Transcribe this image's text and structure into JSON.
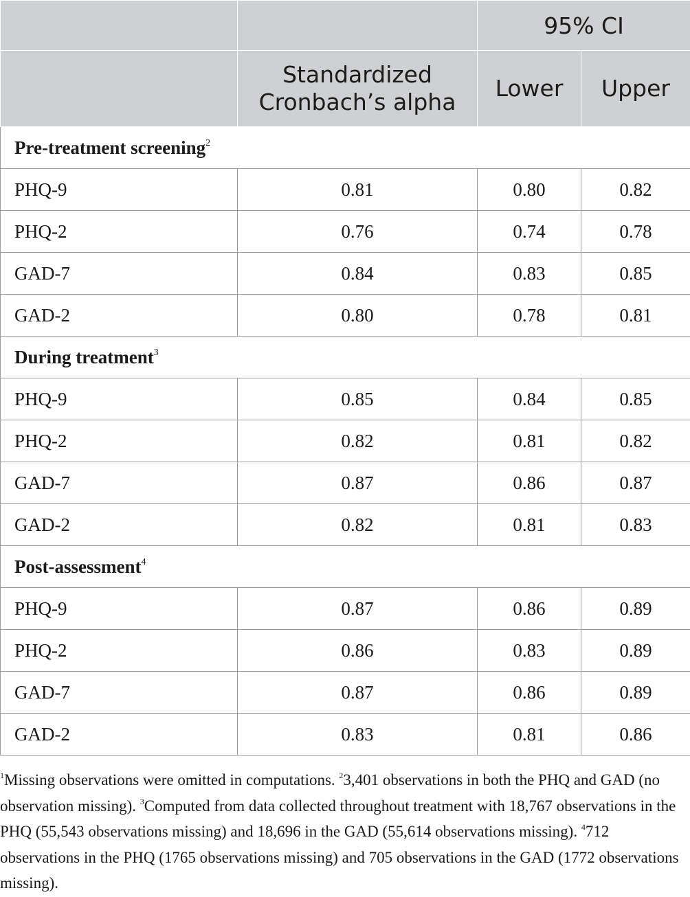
{
  "header": {
    "ci_label": "95% CI",
    "alpha_line1": "Standardized",
    "alpha_line2": "Cronbach’s alpha",
    "lower": "Lower",
    "upper": "Upper"
  },
  "sections": [
    {
      "title": "Pre-treatment screening",
      "sup": "2",
      "rows": [
        {
          "label": "PHQ-9",
          "alpha": "0.81",
          "lower": "0.80",
          "upper": "0.82"
        },
        {
          "label": "PHQ-2",
          "alpha": "0.76",
          "lower": "0.74",
          "upper": "0.78"
        },
        {
          "label": "GAD-7",
          "alpha": "0.84",
          "lower": "0.83",
          "upper": "0.85"
        },
        {
          "label": "GAD-2",
          "alpha": "0.80",
          "lower": "0.78",
          "upper": "0.81"
        }
      ]
    },
    {
      "title": "During treatment",
      "sup": "3",
      "rows": [
        {
          "label": "PHQ-9",
          "alpha": "0.85",
          "lower": "0.84",
          "upper": "0.85"
        },
        {
          "label": "PHQ-2",
          "alpha": "0.82",
          "lower": "0.81",
          "upper": "0.82"
        },
        {
          "label": "GAD-7",
          "alpha": "0.87",
          "lower": "0.86",
          "upper": "0.87"
        },
        {
          "label": "GAD-2",
          "alpha": "0.82",
          "lower": "0.81",
          "upper": "0.83"
        }
      ]
    },
    {
      "title": "Post-assessment",
      "sup": "4",
      "rows": [
        {
          "label": "PHQ-9",
          "alpha": "0.87",
          "lower": "0.86",
          "upper": "0.89"
        },
        {
          "label": "PHQ-2",
          "alpha": "0.86",
          "lower": "0.83",
          "upper": "0.89"
        },
        {
          "label": "GAD-7",
          "alpha": "0.87",
          "lower": "0.86",
          "upper": "0.89"
        },
        {
          "label": "GAD-2",
          "alpha": "0.83",
          "lower": "0.81",
          "upper": "0.86"
        }
      ]
    }
  ],
  "footnotes": [
    {
      "sup": "1",
      "text": "Missing observations were omitted in computations. "
    },
    {
      "sup": "2",
      "text": "3,401 observations in both the PHQ and GAD (no observation missing). "
    },
    {
      "sup": "3",
      "text": "Computed from data collected throughout treatment with 18,767 observations in the PHQ (55,543 observations missing) and 18,696 in the GAD (55,614 observations missing). "
    },
    {
      "sup": "4",
      "text": "712 observations in the PHQ (1765 observations missing) and 705 observations in the GAD (1772 observations missing)."
    }
  ]
}
